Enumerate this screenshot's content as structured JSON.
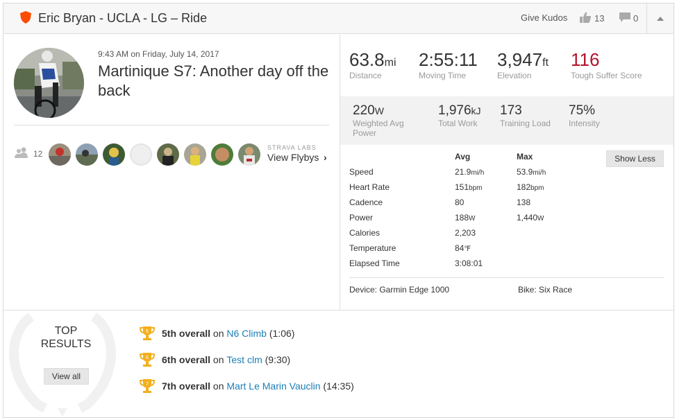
{
  "header": {
    "title": "Eric Bryan - UCLA - LG – Ride",
    "give_kudos": "Give Kudos",
    "kudos_count": "13",
    "comment_count": "0"
  },
  "activity": {
    "datetime": "9:43 AM on Friday, July 14, 2017",
    "title": "Martinique S7: Another day off the back",
    "group_count": "12",
    "labs": "STRAVA LABS",
    "flybys": "View Flybys"
  },
  "stats": {
    "distance": {
      "value": "63.8",
      "unit": "mi",
      "label": "Distance"
    },
    "moving_time": {
      "value": "2:55:11",
      "label": "Moving Time"
    },
    "elevation": {
      "value": "3,947",
      "unit": "ft",
      "label": "Elevation"
    },
    "suffer": {
      "value": "116",
      "label": "Tough Suffer Score"
    }
  },
  "stats2": {
    "weighted_power": {
      "value": "220",
      "unit": "W",
      "label": "Weighted Avg Power"
    },
    "total_work": {
      "value": "1,976",
      "unit": "kJ",
      "label": "Total Work"
    },
    "training_load": {
      "value": "173",
      "label": "Training Load"
    },
    "intensity": {
      "value": "75%",
      "label": "Intensity"
    }
  },
  "more": {
    "avg_header": "Avg",
    "max_header": "Max",
    "show_less": "Show Less",
    "rows": [
      {
        "label": "Speed",
        "avg": "21.9",
        "avg_unit": "mi/h",
        "max": "53.9",
        "max_unit": "mi/h"
      },
      {
        "label": "Heart Rate",
        "avg": "151",
        "avg_unit": "bpm",
        "max": "182",
        "max_unit": "bpm"
      },
      {
        "label": "Cadence",
        "avg": "80",
        "avg_unit": "",
        "max": "138",
        "max_unit": ""
      },
      {
        "label": "Power",
        "avg": "188",
        "avg_unit": "W",
        "max": "1,440",
        "max_unit": "W"
      },
      {
        "label": "Calories",
        "avg": "2,203",
        "avg_unit": "",
        "max": "",
        "max_unit": ""
      },
      {
        "label": "Temperature",
        "avg": "84",
        "avg_unit": "℉",
        "max": "",
        "max_unit": ""
      },
      {
        "label": "Elapsed Time",
        "avg": "3:08:01",
        "avg_unit": "",
        "max": "",
        "max_unit": ""
      }
    ],
    "device": "Device: Garmin Edge 1000",
    "bike": "Bike: Six Race"
  },
  "results": {
    "heading": "TOP RESULTS",
    "view_all": "View all",
    "items": [
      {
        "rank": "5",
        "place": "5th overall",
        "on": "on",
        "segment": "N6 Climb",
        "time": "(1:06)"
      },
      {
        "rank": "6",
        "place": "6th overall",
        "on": "on",
        "segment": "Test clm",
        "time": "(9:30)"
      },
      {
        "rank": "7",
        "place": "7th overall",
        "on": "on",
        "segment": "Mart Le Marin Vauclin",
        "time": "(14:35)"
      }
    ]
  },
  "colors": {
    "suffer": "#b0132b",
    "link": "#1a7fb5",
    "trophy": "#f2b01e",
    "shield": "#fc4c02"
  }
}
